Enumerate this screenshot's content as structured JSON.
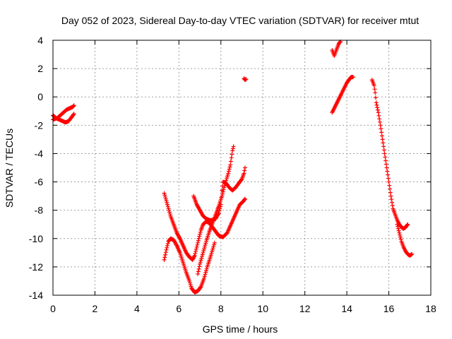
{
  "chart_data": {
    "type": "scatter",
    "title": "Day 052 of 2023, Sidereal Day-to-day VTEC variation (SDTVAR) for receiver mtut",
    "xlabel": "GPS time / hours",
    "ylabel": "SDTVAR / TECUs",
    "xlim": [
      0,
      18
    ],
    "ylim": [
      -14,
      4
    ],
    "x_ticks": [
      "0",
      "2",
      "4",
      "6",
      "8",
      "10",
      "12",
      "14",
      "16",
      "18"
    ],
    "y_ticks": [
      "4",
      "2",
      "0",
      "-2",
      "-4",
      "-6",
      "-8",
      "-10",
      "-12",
      "-14"
    ],
    "grid": true,
    "marker": "+",
    "color": "#ff0000",
    "series": [
      {
        "points": [
          [
            0.0,
            -1.3
          ],
          [
            0.15,
            -1.5
          ],
          [
            0.3,
            -1.6
          ],
          [
            0.45,
            -1.7
          ],
          [
            0.6,
            -1.8
          ],
          [
            0.75,
            -1.7
          ],
          [
            0.85,
            -1.5
          ],
          [
            0.95,
            -1.3
          ],
          [
            1.0,
            -1.2
          ]
        ]
      },
      {
        "points": [
          [
            0.0,
            -1.6
          ],
          [
            0.2,
            -1.5
          ],
          [
            0.35,
            -1.3
          ],
          [
            0.5,
            -1.1
          ],
          [
            0.65,
            -0.9
          ],
          [
            0.8,
            -0.8
          ],
          [
            0.95,
            -0.7
          ],
          [
            1.0,
            -0.6
          ]
        ]
      },
      {
        "points": [
          [
            5.3,
            -6.8
          ],
          [
            5.45,
            -7.6
          ],
          [
            5.6,
            -8.4
          ],
          [
            5.75,
            -9.0
          ],
          [
            5.9,
            -9.6
          ],
          [
            6.05,
            -10.0
          ],
          [
            6.2,
            -10.5
          ],
          [
            6.35,
            -11.0
          ],
          [
            6.5,
            -11.3
          ],
          [
            6.65,
            -11.5
          ],
          [
            6.75,
            -11.2
          ],
          [
            6.85,
            -10.6
          ],
          [
            6.95,
            -10.0
          ],
          [
            7.05,
            -9.4
          ],
          [
            7.15,
            -9.0
          ],
          [
            7.3,
            -8.8
          ],
          [
            7.45,
            -8.9
          ],
          [
            7.6,
            -9.2
          ],
          [
            7.75,
            -9.5
          ],
          [
            7.9,
            -9.8
          ],
          [
            8.1,
            -9.9
          ],
          [
            8.3,
            -9.6
          ],
          [
            8.45,
            -9.1
          ],
          [
            8.6,
            -8.6
          ],
          [
            8.75,
            -8.1
          ],
          [
            8.9,
            -7.6
          ],
          [
            9.05,
            -7.4
          ],
          [
            9.15,
            -7.2
          ]
        ]
      },
      {
        "points": [
          [
            5.3,
            -11.5
          ],
          [
            5.4,
            -10.8
          ],
          [
            5.5,
            -10.2
          ],
          [
            5.6,
            -10.0
          ],
          [
            5.75,
            -10.1
          ],
          [
            5.9,
            -10.5
          ],
          [
            6.05,
            -11.0
          ],
          [
            6.2,
            -11.7
          ],
          [
            6.35,
            -12.4
          ],
          [
            6.5,
            -13.0
          ],
          [
            6.6,
            -13.5
          ],
          [
            6.75,
            -13.8
          ],
          [
            6.9,
            -13.7
          ],
          [
            7.05,
            -13.4
          ],
          [
            7.2,
            -12.8
          ],
          [
            7.35,
            -12.0
          ],
          [
            7.5,
            -11.3
          ],
          [
            7.6,
            -10.8
          ],
          [
            7.7,
            -10.3
          ]
        ]
      },
      {
        "points": [
          [
            6.7,
            -7.0
          ],
          [
            6.85,
            -7.6
          ],
          [
            7.0,
            -8.0
          ],
          [
            7.15,
            -8.4
          ],
          [
            7.3,
            -8.6
          ],
          [
            7.45,
            -8.7
          ],
          [
            7.6,
            -8.7
          ],
          [
            7.75,
            -8.6
          ],
          [
            7.9,
            -8.2
          ],
          [
            8.0,
            -7.6
          ],
          [
            8.05,
            -6.6
          ],
          [
            8.1,
            -6.0
          ],
          [
            8.25,
            -6.1
          ],
          [
            8.4,
            -6.4
          ],
          [
            8.55,
            -6.6
          ],
          [
            8.7,
            -6.4
          ],
          [
            8.85,
            -6.1
          ],
          [
            9.0,
            -5.8
          ],
          [
            9.1,
            -5.4
          ],
          [
            9.15,
            -5.0
          ]
        ]
      },
      {
        "points": [
          [
            6.9,
            -12.5
          ],
          [
            7.0,
            -11.8
          ],
          [
            7.15,
            -11.0
          ],
          [
            7.3,
            -10.2
          ],
          [
            7.45,
            -9.5
          ],
          [
            7.6,
            -8.9
          ],
          [
            7.75,
            -8.3
          ],
          [
            7.9,
            -7.7
          ],
          [
            8.05,
            -7.0
          ],
          [
            8.15,
            -6.4
          ],
          [
            8.25,
            -5.9
          ],
          [
            8.35,
            -5.4
          ],
          [
            8.45,
            -4.8
          ],
          [
            8.5,
            -4.3
          ],
          [
            8.55,
            -3.8
          ],
          [
            8.6,
            -3.5
          ]
        ]
      },
      {
        "points": [
          [
            9.1,
            1.3
          ],
          [
            9.15,
            1.2
          ],
          [
            9.2,
            1.25
          ]
        ]
      },
      {
        "points": [
          [
            13.3,
            -1.1
          ],
          [
            13.4,
            -0.8
          ],
          [
            13.5,
            -0.5
          ],
          [
            13.6,
            -0.2
          ],
          [
            13.7,
            0.1
          ],
          [
            13.8,
            0.4
          ],
          [
            13.9,
            0.7
          ],
          [
            14.0,
            1.0
          ],
          [
            14.1,
            1.2
          ],
          [
            14.2,
            1.4
          ],
          [
            14.3,
            1.4
          ]
        ]
      },
      {
        "points": [
          [
            13.3,
            3.3
          ],
          [
            13.4,
            2.9
          ],
          [
            13.45,
            3.1
          ],
          [
            13.5,
            3.3
          ],
          [
            13.55,
            3.5
          ],
          [
            13.6,
            3.7
          ],
          [
            13.65,
            3.85
          ],
          [
            13.7,
            3.9
          ]
        ]
      },
      {
        "points": [
          [
            15.2,
            1.2
          ],
          [
            15.3,
            0.8
          ],
          [
            15.35,
            0.3
          ],
          [
            15.4,
            -0.4
          ],
          [
            15.5,
            -1.1
          ],
          [
            15.6,
            -2.0
          ],
          [
            15.7,
            -3.0
          ],
          [
            15.8,
            -4.0
          ],
          [
            15.9,
            -5.0
          ],
          [
            16.0,
            -6.0
          ],
          [
            16.1,
            -7.0
          ],
          [
            16.2,
            -7.9
          ],
          [
            16.3,
            -8.3
          ],
          [
            16.4,
            -8.7
          ],
          [
            16.5,
            -9.0
          ],
          [
            16.6,
            -9.2
          ],
          [
            16.7,
            -9.3
          ],
          [
            16.8,
            -9.2
          ],
          [
            16.9,
            -9.0
          ]
        ]
      },
      {
        "points": [
          [
            16.4,
            -9.0
          ],
          [
            16.5,
            -9.6
          ],
          [
            16.6,
            -10.2
          ],
          [
            16.7,
            -10.6
          ],
          [
            16.8,
            -10.9
          ],
          [
            16.9,
            -11.1
          ],
          [
            17.0,
            -11.2
          ],
          [
            17.1,
            -11.1
          ]
        ]
      }
    ]
  }
}
